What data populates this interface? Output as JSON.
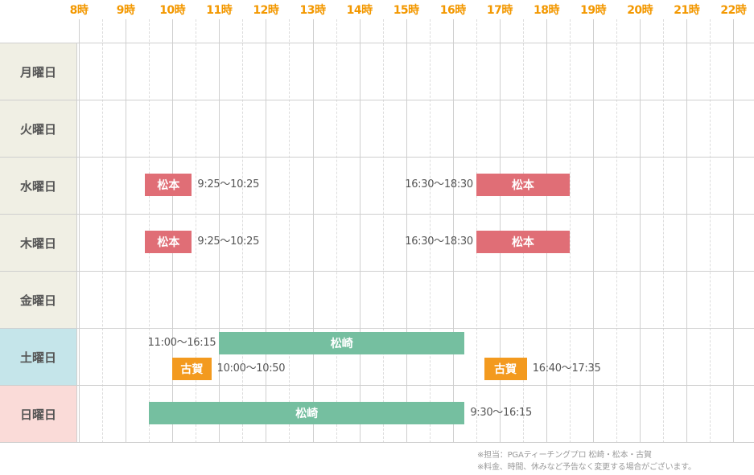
{
  "hours": [
    "8時",
    "9時",
    "10時",
    "11時",
    "12時",
    "13時",
    "14時",
    "15時",
    "16時",
    "17時",
    "18時",
    "19時",
    "20時",
    "21時",
    "22時"
  ],
  "days": [
    {
      "label": "月曜日",
      "bg": "#f0efe4"
    },
    {
      "label": "火曜日",
      "bg": "#f0efe4"
    },
    {
      "label": "水曜日",
      "bg": "#f0efe4"
    },
    {
      "label": "木曜日",
      "bg": "#f0efe4"
    },
    {
      "label": "金曜日",
      "bg": "#f0efe4"
    },
    {
      "label": "土曜日",
      "bg": "#c5e5ea"
    },
    {
      "label": "日曜日",
      "bg": "#fadbd8"
    }
  ],
  "colors": {
    "matsumoto": "#e06e76",
    "matsuzaki": "#75bfa0",
    "koga": "#f39a1f",
    "hour_label": "#f39800"
  },
  "schedule": [
    {
      "day": 2,
      "instructor": "松本",
      "color": "matsumoto",
      "start": "9:25",
      "end": "10:25",
      "time_label": "9:25〜10:25",
      "label_side": "right",
      "lane": "single"
    },
    {
      "day": 2,
      "instructor": "松本",
      "color": "matsumoto",
      "start": "16:30",
      "end": "18:30",
      "time_label": "16:30〜18:30",
      "label_side": "left",
      "lane": "single"
    },
    {
      "day": 3,
      "instructor": "松本",
      "color": "matsumoto",
      "start": "9:25",
      "end": "10:25",
      "time_label": "9:25〜10:25",
      "label_side": "right",
      "lane": "single"
    },
    {
      "day": 3,
      "instructor": "松本",
      "color": "matsumoto",
      "start": "16:30",
      "end": "18:30",
      "time_label": "16:30〜18:30",
      "label_side": "left",
      "lane": "single"
    },
    {
      "day": 5,
      "instructor": "松崎",
      "color": "matsuzaki",
      "start": "11:00",
      "end": "16:15",
      "time_label": "11:00〜16:15",
      "label_side": "left",
      "lane": "upper"
    },
    {
      "day": 5,
      "instructor": "古賀",
      "color": "koga",
      "start": "10:00",
      "end": "10:50",
      "time_label": "10:00〜10:50",
      "label_side": "right",
      "lane": "lower"
    },
    {
      "day": 5,
      "instructor": "古賀",
      "color": "koga",
      "start": "16:40",
      "end": "17:35",
      "time_label": "16:40〜17:35",
      "label_side": "right",
      "lane": "lower"
    },
    {
      "day": 6,
      "instructor": "松崎",
      "color": "matsuzaki",
      "start": "9:30",
      "end": "16:15",
      "time_label": "9:30〜16:15",
      "label_side": "right",
      "lane": "single"
    }
  ],
  "notes": [
    "※担当：PGAティーチングプロ 松崎・松本・古賀",
    "※料金、時間、休みなど予告なく変更する場合がございます。"
  ]
}
